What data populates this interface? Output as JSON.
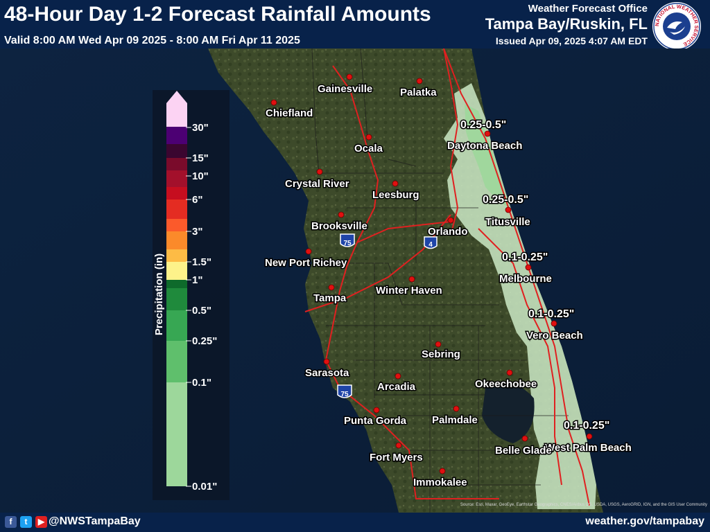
{
  "header": {
    "title": "48-Hour Day 1-2 Forecast Rainfall Amounts",
    "valid": "Valid 8:00 AM Wed Apr 09 2025 - 8:00 AM Fri Apr 11 2025",
    "office_label": "Weather Forecast Office",
    "office_name": "Tampa Bay/Ruskin, FL",
    "issued": "Issued Apr 09, 2025 4:07 AM EDT",
    "logo_ring_text": "NATIONAL WEATHER SERVICE"
  },
  "legend": {
    "title": "Precipitation (in)",
    "ticks": [
      "30\"",
      "15\"",
      "10\"",
      "6\"",
      "3\"",
      "1.5\"",
      "1\"",
      "0.5\"",
      "0.25\"",
      "0.1\"",
      "0.01\""
    ],
    "colors": [
      "#fcd3f3",
      "#4c0073",
      "#3b0630",
      "#7a0b2b",
      "#a3102b",
      "#c60e1f",
      "#e42c22",
      "#fb5a2b",
      "#fb8a2a",
      "#fdbb45",
      "#fdf28a",
      "#0e6a2b",
      "#1f8a3c",
      "#37a753",
      "#5fbf6c",
      "#9dd79b",
      "#cbe9c6"
    ]
  },
  "cities": [
    {
      "name": "Gainesville"
    },
    {
      "name": "Palatka"
    },
    {
      "name": "Chiefland"
    },
    {
      "name": "Ocala"
    },
    {
      "name": "Daytona Beach"
    },
    {
      "name": "Crystal River"
    },
    {
      "name": "Leesburg"
    },
    {
      "name": "Brooksville"
    },
    {
      "name": "Orlando"
    },
    {
      "name": "Titusville"
    },
    {
      "name": "New Port Richey"
    },
    {
      "name": "Melbourne"
    },
    {
      "name": "Winter Haven"
    },
    {
      "name": "Tampa"
    },
    {
      "name": "Vero Beach"
    },
    {
      "name": "Sebring"
    },
    {
      "name": "Sarasota"
    },
    {
      "name": "Arcadia"
    },
    {
      "name": "Okeechobee"
    },
    {
      "name": "Punta Gorda"
    },
    {
      "name": "Palmdale"
    },
    {
      "name": "West Palm Beach"
    },
    {
      "name": "Fort Myers"
    },
    {
      "name": "Belle Glade"
    },
    {
      "name": "Immokalee"
    }
  ],
  "amount_labels": [
    "0.25-0.5\"",
    "0.25-0.5\"",
    "0.1-0.25\"",
    "0.1-0.25\"",
    "0.1-0.25\""
  ],
  "highway_shields": [
    "75",
    "4",
    "75"
  ],
  "footer": {
    "handle": "@NWSTampaBay",
    "site": "weather.gov/tampabay",
    "social_icons": [
      "facebook-icon",
      "twitter-icon",
      "youtube-icon"
    ]
  },
  "attribution": "Source: Esri, Maxar, GeoEye, Earthstar Geographics, CNES/Airbus DS, USDA, USGS, AeroGRID, IGN, and the GIS User Community"
}
